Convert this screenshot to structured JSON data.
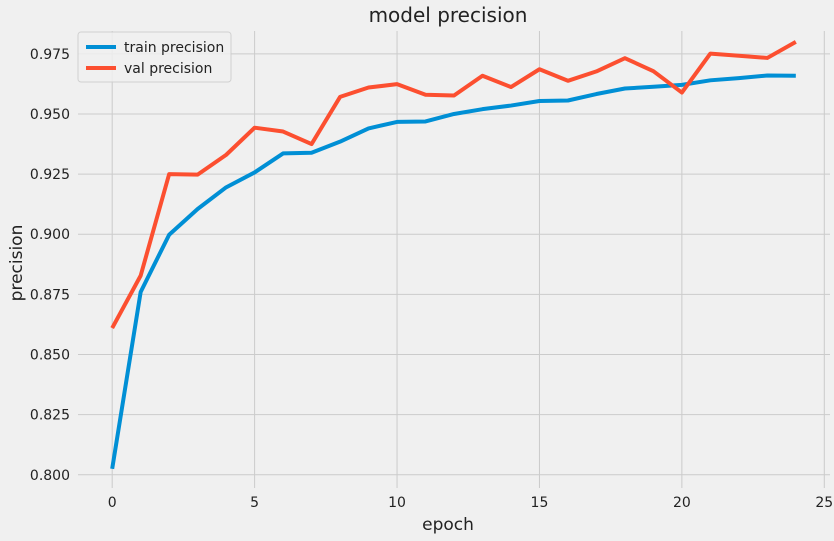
{
  "chart_data": {
    "type": "line",
    "title": "model precision",
    "xlabel": "epoch",
    "ylabel": "precision",
    "xlim": [
      -1.2,
      25.2
    ],
    "ylim": [
      0.7945,
      0.9845
    ],
    "xticks": [
      0,
      5,
      10,
      15,
      20,
      25
    ],
    "yticks": [
      0.8,
      0.825,
      0.85,
      0.875,
      0.9,
      0.925,
      0.95,
      0.975
    ],
    "xtick_labels": [
      "0",
      "5",
      "10",
      "15",
      "20",
      "25"
    ],
    "ytick_labels": [
      "0.800",
      "0.825",
      "0.850",
      "0.875",
      "0.900",
      "0.925",
      "0.950",
      "0.975"
    ],
    "grid": true,
    "legend_position": "upper-left",
    "x": [
      0,
      1,
      2,
      3,
      4,
      5,
      6,
      7,
      8,
      9,
      10,
      11,
      12,
      13,
      14,
      15,
      16,
      17,
      18,
      19,
      20,
      21,
      22,
      23,
      24
    ],
    "series": [
      {
        "name": "train precision",
        "color": "#008fd5",
        "values": [
          0.8025,
          0.876,
          0.8998,
          0.9105,
          0.9195,
          0.9257,
          0.9336,
          0.9339,
          0.9385,
          0.944,
          0.9467,
          0.9469,
          0.95,
          0.952,
          0.9535,
          0.9554,
          0.9556,
          0.9583,
          0.9606,
          0.9613,
          0.9621,
          0.964,
          0.9649,
          0.966,
          0.9659
        ]
      },
      {
        "name": "val precision",
        "color": "#fc4f30",
        "values": [
          0.861,
          0.8828,
          0.925,
          0.9248,
          0.933,
          0.9443,
          0.9427,
          0.9375,
          0.9571,
          0.961,
          0.9624,
          0.958,
          0.9577,
          0.9659,
          0.9612,
          0.9686,
          0.9638,
          0.9677,
          0.9732,
          0.9678,
          0.9589,
          0.9751,
          0.9742,
          0.9733,
          0.98
        ]
      }
    ]
  }
}
